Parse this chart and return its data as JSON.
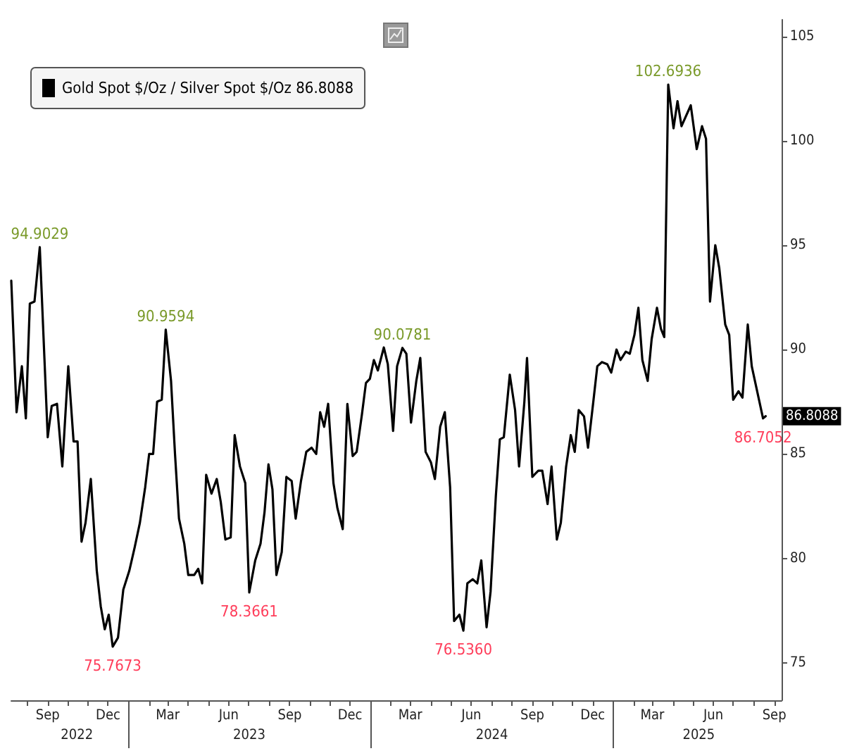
{
  "chart_data": {
    "type": "line",
    "legend": "top left",
    "grid": false,
    "marker": "none",
    "line_style": "solid",
    "series": [
      {
        "name": "Gold Spot $/Oz / Silver Spot $/Oz 86.8088",
        "color": "#000000",
        "x": [
          "2022-07-08",
          "2022-07-16",
          "2022-07-24",
          "2022-07-30",
          "2022-08-05",
          "2022-08-12",
          "2022-08-20",
          "2022-09-01",
          "2022-09-07",
          "2022-09-15",
          "2022-09-23",
          "2022-10-02",
          "2022-10-10",
          "2022-10-16",
          "2022-10-22",
          "2022-10-28",
          "2022-11-05",
          "2022-11-14",
          "2022-11-20",
          "2022-11-26",
          "2022-12-02",
          "2022-12-08",
          "2022-12-16",
          "2022-12-24",
          "2023-01-02",
          "2023-01-10",
          "2023-01-18",
          "2023-01-26",
          "2023-02-01",
          "2023-02-07",
          "2023-02-13",
          "2023-02-20",
          "2023-02-26",
          "2023-03-06",
          "2023-03-12",
          "2023-03-18",
          "2023-03-26",
          "2023-04-01",
          "2023-04-10",
          "2023-04-16",
          "2023-04-22",
          "2023-04-28",
          "2023-05-06",
          "2023-05-14",
          "2023-05-20",
          "2023-05-27",
          "2023-06-04",
          "2023-06-10",
          "2023-06-18",
          "2023-06-26",
          "2023-07-02",
          "2023-07-11",
          "2023-07-19",
          "2023-07-25",
          "2023-07-31",
          "2023-08-06",
          "2023-08-12",
          "2023-08-20",
          "2023-08-27",
          "2023-09-04",
          "2023-09-10",
          "2023-09-18",
          "2023-09-26",
          "2023-10-04",
          "2023-10-11",
          "2023-10-17",
          "2023-10-23",
          "2023-10-29",
          "2023-11-06",
          "2023-11-12",
          "2023-11-20",
          "2023-11-27",
          "2023-12-05",
          "2023-12-11",
          "2023-12-19",
          "2023-12-25",
          "2023-12-31",
          "2024-01-06",
          "2024-01-12",
          "2024-01-21",
          "2024-01-27",
          "2024-02-04",
          "2024-02-10",
          "2024-02-18",
          "2024-02-24",
          "2024-03-02",
          "2024-03-10",
          "2024-03-16",
          "2024-03-24",
          "2024-04-01",
          "2024-04-07",
          "2024-04-15",
          "2024-04-22",
          "2024-04-30",
          "2024-05-06",
          "2024-05-14",
          "2024-05-20",
          "2024-05-26",
          "2024-06-03",
          "2024-06-10",
          "2024-06-16",
          "2024-06-24",
          "2024-06-30",
          "2024-07-08",
          "2024-07-14",
          "2024-07-20",
          "2024-07-29",
          "2024-08-06",
          "2024-08-12",
          "2024-08-20",
          "2024-08-24",
          "2024-09-01",
          "2024-09-10",
          "2024-09-16",
          "2024-09-24",
          "2024-09-30",
          "2024-10-08",
          "2024-10-14",
          "2024-10-22",
          "2024-10-29",
          "2024-11-04",
          "2024-11-10",
          "2024-11-18",
          "2024-11-24",
          "2024-12-02",
          "2024-12-08",
          "2024-12-15",
          "2024-12-23",
          "2024-12-29",
          "2025-01-06",
          "2025-01-12",
          "2025-01-20",
          "2025-01-26",
          "2025-02-02",
          "2025-02-08",
          "2025-02-14",
          "2025-02-22",
          "2025-02-28",
          "2025-03-08",
          "2025-03-14",
          "2025-03-19",
          "2025-03-25",
          "2025-04-02",
          "2025-04-08",
          "2025-04-14",
          "2025-04-28",
          "2025-05-07",
          "2025-05-15",
          "2025-05-21",
          "2025-05-27",
          "2025-06-04",
          "2025-06-10",
          "2025-06-19",
          "2025-06-25",
          "2025-07-01",
          "2025-07-09",
          "2025-07-15",
          "2025-07-23",
          "2025-07-29",
          "2025-08-15",
          "2025-08-19"
        ],
        "values": [
          93.3,
          87,
          89.2,
          86.7,
          92.2,
          92.3,
          94.9029,
          85.8,
          87.3,
          87.4,
          84.4,
          89.2,
          85.6,
          85.6,
          80.8,
          81.7,
          83.8,
          79.4,
          77.7,
          76.6,
          77.3,
          75.7673,
          76.2,
          78.5,
          79.4,
          80.5,
          81.7,
          83.4,
          85,
          85,
          87.5,
          87.6,
          90.9594,
          88.5,
          85,
          81.9,
          80.7,
          79.2,
          79.2,
          79.5,
          78.8,
          84,
          83.1,
          83.8,
          82.7,
          80.9,
          81,
          85.9,
          84.4,
          83.6,
          78.3661,
          79.9,
          80.7,
          82.2,
          84.5,
          83.3,
          79.2,
          80.3,
          83.9,
          83.7,
          81.9,
          83.7,
          85.1,
          85.3,
          85,
          87,
          86.3,
          87.4,
          83.6,
          82.4,
          81.4,
          87.4,
          84.9,
          85.1,
          86.9,
          88.4,
          88.6,
          89.5,
          89,
          90.1,
          89.3,
          86.1,
          89.2,
          90.0781,
          89.8,
          86.5,
          88.5,
          89.6,
          85.1,
          84.6,
          83.8,
          86.3,
          87,
          83.4,
          77,
          77.3,
          76.536,
          78.8,
          79,
          78.8,
          79.9,
          76.7,
          78.4,
          83,
          85.7,
          85.8,
          88.8,
          87.1,
          84.4,
          87.5,
          89.6,
          83.9,
          84.2,
          84.2,
          82.6,
          84.4,
          80.9,
          81.7,
          84.4,
          85.9,
          85.1,
          87.1,
          86.8,
          85.3,
          87.5,
          89.2,
          89.4,
          89.3,
          88.9,
          90,
          89.5,
          89.9,
          89.8,
          90.7,
          92,
          89.5,
          88.5,
          90.5,
          92,
          91,
          90.6,
          102.6936,
          100.6,
          101.9,
          100.7,
          101.7,
          99.6,
          100.7,
          100.1,
          92.3,
          95,
          93.9,
          91.2,
          90.7,
          87.6,
          88,
          87.7,
          91.2,
          89.2,
          86.7052,
          86.8088
        ]
      }
    ],
    "ylim": [
      73.2,
      105.8
    ],
    "yticks": [
      75,
      80,
      85,
      90,
      95,
      100,
      105
    ],
    "xlim": [
      "2022-07-08",
      "2025-09-12"
    ],
    "xticks": [
      {
        "value": "2022-08-01",
        "label": null
      },
      {
        "value": "2022-09-01",
        "label": "Sep"
      },
      {
        "value": "2022-10-01",
        "label": null
      },
      {
        "value": "2022-11-01",
        "label": null
      },
      {
        "value": "2022-12-01",
        "label": "Dec"
      },
      {
        "value": "2023-01-01",
        "label": null
      },
      {
        "value": "2023-02-01",
        "label": null
      },
      {
        "value": "2023-03-01",
        "label": "Mar"
      },
      {
        "value": "2023-04-01",
        "label": null
      },
      {
        "value": "2023-05-01",
        "label": null
      },
      {
        "value": "2023-06-01",
        "label": "Jun"
      },
      {
        "value": "2023-07-01",
        "label": null
      },
      {
        "value": "2023-08-01",
        "label": null
      },
      {
        "value": "2023-09-01",
        "label": "Sep"
      },
      {
        "value": "2023-10-01",
        "label": null
      },
      {
        "value": "2023-11-01",
        "label": null
      },
      {
        "value": "2023-12-01",
        "label": "Dec"
      },
      {
        "value": "2024-01-01",
        "label": null
      },
      {
        "value": "2024-02-01",
        "label": null
      },
      {
        "value": "2024-03-01",
        "label": "Mar"
      },
      {
        "value": "2024-04-01",
        "label": null
      },
      {
        "value": "2024-05-01",
        "label": null
      },
      {
        "value": "2024-06-01",
        "label": "Jun"
      },
      {
        "value": "2024-07-01",
        "label": null
      },
      {
        "value": "2024-08-01",
        "label": null
      },
      {
        "value": "2024-09-01",
        "label": "Sep"
      },
      {
        "value": "2024-10-01",
        "label": null
      },
      {
        "value": "2024-11-01",
        "label": null
      },
      {
        "value": "2024-12-01",
        "label": "Dec"
      },
      {
        "value": "2025-01-01",
        "label": null
      },
      {
        "value": "2025-02-01",
        "label": null
      },
      {
        "value": "2025-03-01",
        "label": "Mar"
      },
      {
        "value": "2025-04-01",
        "label": null
      },
      {
        "value": "2025-05-01",
        "label": null
      },
      {
        "value": "2025-06-01",
        "label": "Jun"
      },
      {
        "value": "2025-07-01",
        "label": null
      },
      {
        "value": "2025-08-01",
        "label": null
      },
      {
        "value": "2025-09-01",
        "label": "Sep"
      }
    ],
    "x2lim": [
      "2022-07-08",
      "2025-09-12"
    ],
    "x2ticks": [
      {
        "value": "2022-10-15",
        "label": "2022"
      },
      {
        "value": "2023-01-01",
        "label": null
      },
      {
        "value": "2023-07-02",
        "label": "2023"
      },
      {
        "value": "2024-01-01",
        "label": null
      },
      {
        "value": "2024-07-02",
        "label": "2024"
      },
      {
        "value": "2025-01-01",
        "label": null
      },
      {
        "value": "2025-05-10",
        "label": "2025"
      }
    ],
    "annotations": [
      {
        "text": "94.9029",
        "x": "2022-08-20",
        "y": 94.9029
      },
      {
        "text": "75.7673",
        "x": "2022-12-08",
        "y": 75.7673
      },
      {
        "text": "90.9594",
        "x": "2023-02-26",
        "y": 90.9594
      },
      {
        "text": "78.3661",
        "x": "2023-07-02",
        "y": 78.3661
      },
      {
        "text": "90.0781",
        "x": "2024-02-18",
        "y": 90.0781
      },
      {
        "text": "76.5360",
        "x": "2024-05-20",
        "y": 76.536
      },
      {
        "text": "102.6936",
        "x": "2025-03-25",
        "y": 102.6936
      },
      {
        "text": "86.7052",
        "x": "2025-08-15",
        "y": 86.7052
      },
      {
        "text": "86.8088",
        "x": "2025-08-19",
        "y": 86.8088
      }
    ]
  }
}
